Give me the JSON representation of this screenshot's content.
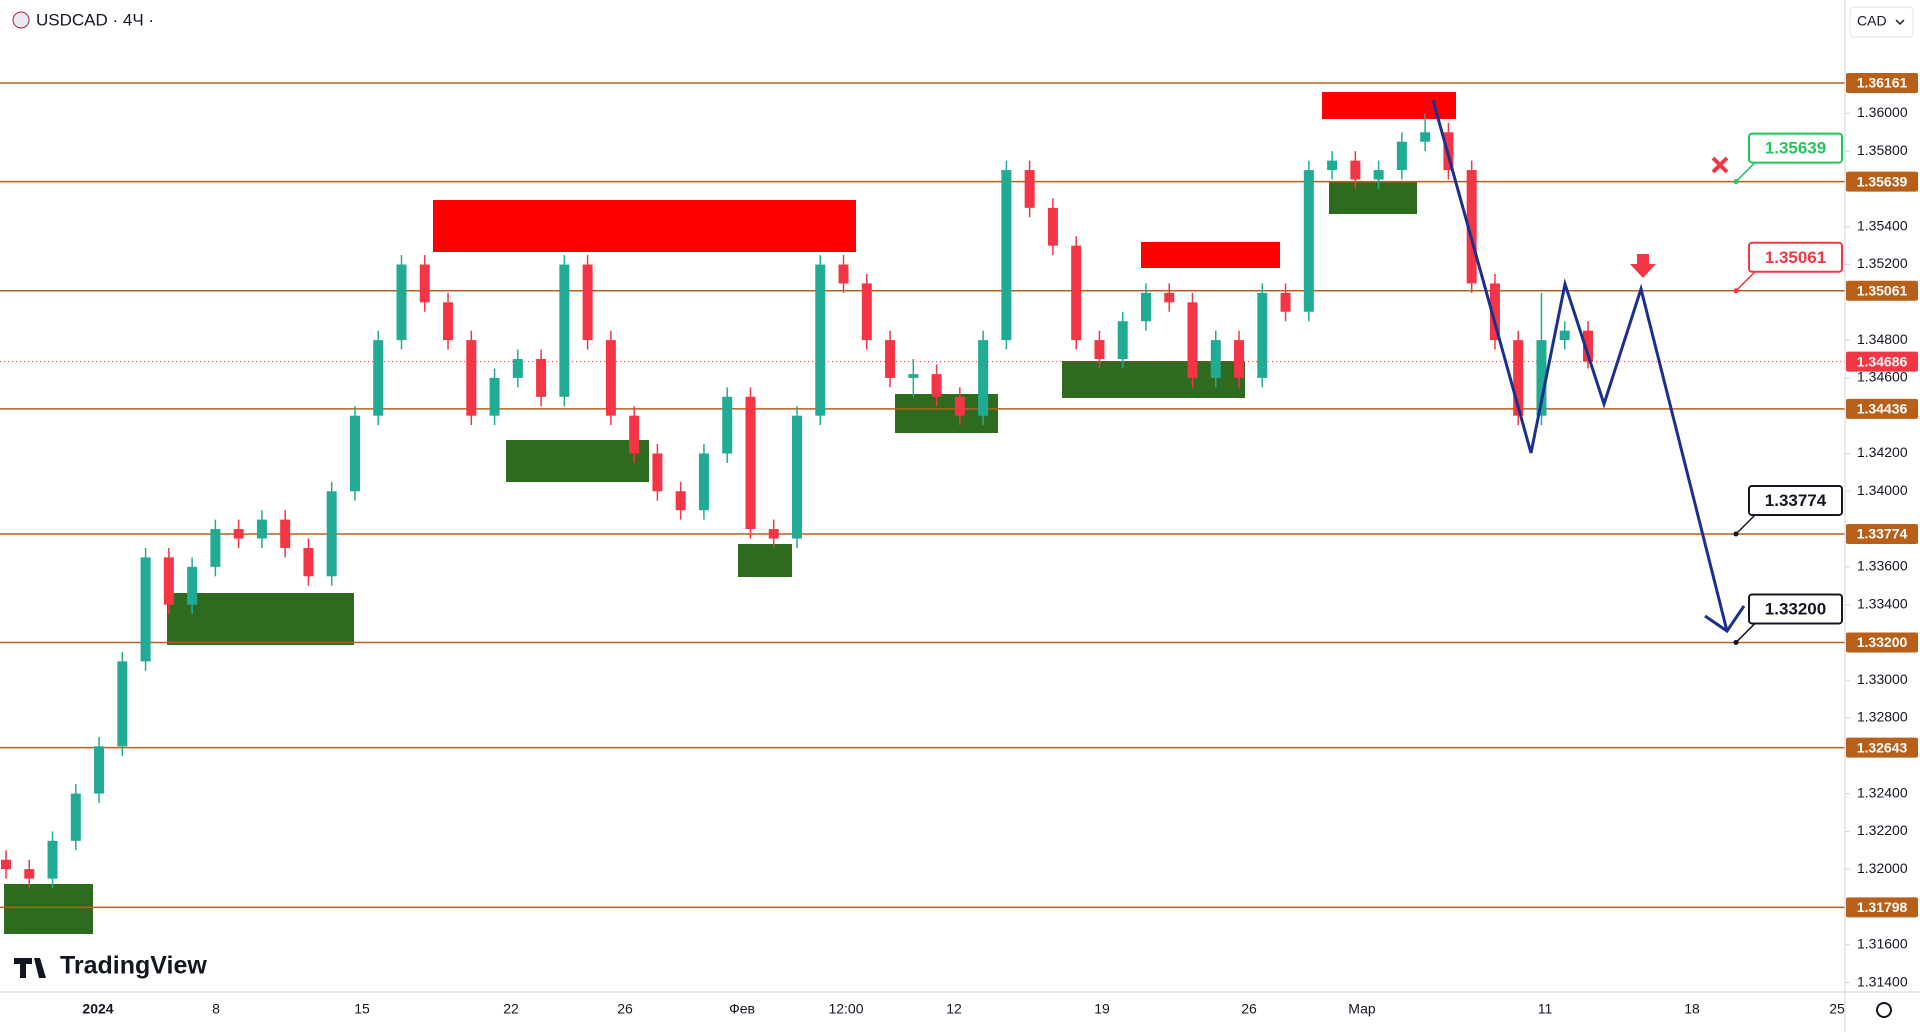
{
  "header": {
    "title": "USDCAD · 4Ч ·",
    "currency": "CAD",
    "logo": "TradingView"
  },
  "chart_data": {
    "type": "candlestick",
    "up_color": "#22ab94",
    "down_color": "#f23645",
    "level_color": "#b8601a",
    "ylim": [
      1.3135,
      1.366
    ],
    "yticks": [
      {
        "value": 1.36,
        "label": "1.36000"
      },
      {
        "value": 1.358,
        "label": "1.35800"
      },
      {
        "value": 1.354,
        "label": "1.35400"
      },
      {
        "value": 1.352,
        "label": "1.35200"
      },
      {
        "value": 1.348,
        "label": "1.34800"
      },
      {
        "value": 1.346,
        "label": "1.34600"
      },
      {
        "value": 1.342,
        "label": "1.34200"
      },
      {
        "value": 1.34,
        "label": "1.34000"
      },
      {
        "value": 1.336,
        "label": "1.33600"
      },
      {
        "value": 1.334,
        "label": "1.33400"
      },
      {
        "value": 1.33,
        "label": "1.33000"
      },
      {
        "value": 1.328,
        "label": "1.32800"
      },
      {
        "value": 1.324,
        "label": "1.32400"
      },
      {
        "value": 1.322,
        "label": "1.32200"
      },
      {
        "value": 1.32,
        "label": "1.32000"
      },
      {
        "value": 1.316,
        "label": "1.31600"
      },
      {
        "value": 1.314,
        "label": "1.31400"
      }
    ],
    "x_labels": [
      "2024",
      "8",
      "15",
      "22",
      "26",
      "Фев",
      "12:00",
      "12",
      "19",
      "26",
      "Мар",
      "11",
      "18",
      "25"
    ],
    "levels": [
      {
        "value": 1.36161,
        "label": "1.36161"
      },
      {
        "value": 1.35639,
        "label": "1.35639"
      },
      {
        "value": 1.35061,
        "label": "1.35061"
      },
      {
        "value": 1.34436,
        "label": "1.34436"
      },
      {
        "value": 1.33774,
        "label": "1.33774"
      },
      {
        "value": 1.332,
        "label": "1.33200"
      },
      {
        "value": 1.32643,
        "label": "1.32643"
      },
      {
        "value": 1.31798,
        "label": "1.31798"
      }
    ],
    "last_price": {
      "value": 1.34686,
      "label": "1.34686"
    },
    "callouts": [
      {
        "value": 1.35639,
        "label": "1.35639",
        "color": "#22c55e"
      },
      {
        "value": 1.35061,
        "label": "1.35061",
        "color": "#f23645"
      },
      {
        "value": 1.33774,
        "label": "1.33774",
        "color": "#131722"
      },
      {
        "value": 1.332,
        "label": "1.33200",
        "color": "#131722"
      }
    ],
    "candles": [
      [
        1.3205,
        1.321,
        1.3195,
        1.32
      ],
      [
        1.32,
        1.3205,
        1.319,
        1.3195
      ],
      [
        1.3195,
        1.322,
        1.319,
        1.3215
      ],
      [
        1.3215,
        1.3245,
        1.321,
        1.324
      ],
      [
        1.324,
        1.327,
        1.3235,
        1.3265
      ],
      [
        1.3265,
        1.3315,
        1.326,
        1.331
      ],
      [
        1.331,
        1.337,
        1.3305,
        1.3365
      ],
      [
        1.3365,
        1.337,
        1.3335,
        1.334
      ],
      [
        1.334,
        1.3365,
        1.3335,
        1.336
      ],
      [
        1.336,
        1.3385,
        1.3355,
        1.338
      ],
      [
        1.338,
        1.3385,
        1.337,
        1.3375
      ],
      [
        1.3375,
        1.339,
        1.337,
        1.3385
      ],
      [
        1.3385,
        1.339,
        1.3365,
        1.337
      ],
      [
        1.337,
        1.3375,
        1.335,
        1.3355
      ],
      [
        1.3355,
        1.3405,
        1.335,
        1.34
      ],
      [
        1.34,
        1.3445,
        1.3395,
        1.344
      ],
      [
        1.344,
        1.3485,
        1.3435,
        1.348
      ],
      [
        1.348,
        1.3525,
        1.3475,
        1.352
      ],
      [
        1.352,
        1.3525,
        1.3495,
        1.35
      ],
      [
        1.35,
        1.3505,
        1.3475,
        1.348
      ],
      [
        1.348,
        1.3485,
        1.3435,
        1.344
      ],
      [
        1.344,
        1.3465,
        1.3435,
        1.346
      ],
      [
        1.346,
        1.3475,
        1.3455,
        1.347
      ],
      [
        1.347,
        1.3475,
        1.3445,
        1.345
      ],
      [
        1.345,
        1.3525,
        1.3445,
        1.352
      ],
      [
        1.352,
        1.3525,
        1.3475,
        1.348
      ],
      [
        1.348,
        1.3485,
        1.3435,
        1.344
      ],
      [
        1.344,
        1.3445,
        1.3415,
        1.342
      ],
      [
        1.342,
        1.3425,
        1.3395,
        1.34
      ],
      [
        1.34,
        1.3405,
        1.3385,
        1.339
      ],
      [
        1.339,
        1.3425,
        1.3385,
        1.342
      ],
      [
        1.342,
        1.3455,
        1.3415,
        1.345
      ],
      [
        1.345,
        1.3455,
        1.3375,
        1.338
      ],
      [
        1.338,
        1.3385,
        1.337,
        1.3375
      ],
      [
        1.3375,
        1.3445,
        1.337,
        1.344
      ],
      [
        1.344,
        1.3525,
        1.3435,
        1.352
      ],
      [
        1.352,
        1.3525,
        1.3505,
        1.351
      ],
      [
        1.351,
        1.3515,
        1.3475,
        1.348
      ],
      [
        1.348,
        1.3485,
        1.3455,
        1.346
      ],
      [
        1.346,
        1.347,
        1.345,
        1.3462
      ],
      [
        1.3462,
        1.3467,
        1.3445,
        1.345
      ],
      [
        1.345,
        1.3455,
        1.3435,
        1.344
      ],
      [
        1.344,
        1.3485,
        1.3435,
        1.348
      ],
      [
        1.348,
        1.3575,
        1.3475,
        1.357
      ],
      [
        1.357,
        1.3575,
        1.3545,
        1.355
      ],
      [
        1.355,
        1.3555,
        1.3525,
        1.353
      ],
      [
        1.353,
        1.3535,
        1.3475,
        1.348
      ],
      [
        1.348,
        1.3485,
        1.3465,
        1.347
      ],
      [
        1.347,
        1.3495,
        1.3465,
        1.349
      ],
      [
        1.349,
        1.351,
        1.3485,
        1.3505
      ],
      [
        1.3505,
        1.351,
        1.3495,
        1.35
      ],
      [
        1.35,
        1.3505,
        1.3455,
        1.346
      ],
      [
        1.346,
        1.3485,
        1.3455,
        1.348
      ],
      [
        1.348,
        1.3485,
        1.3455,
        1.346
      ],
      [
        1.346,
        1.351,
        1.3455,
        1.3505
      ],
      [
        1.3505,
        1.351,
        1.349,
        1.3495
      ],
      [
        1.3495,
        1.3575,
        1.349,
        1.357
      ],
      [
        1.357,
        1.358,
        1.3565,
        1.3575
      ],
      [
        1.3575,
        1.358,
        1.356,
        1.3565
      ],
      [
        1.3565,
        1.3575,
        1.356,
        1.357
      ],
      [
        1.357,
        1.359,
        1.3565,
        1.3585
      ],
      [
        1.3585,
        1.36,
        1.358,
        1.359
      ],
      [
        1.359,
        1.3595,
        1.3565,
        1.357
      ],
      [
        1.357,
        1.3575,
        1.3505,
        1.351
      ],
      [
        1.351,
        1.3515,
        1.3475,
        1.348
      ],
      [
        1.348,
        1.3485,
        1.3435,
        1.344
      ],
      [
        1.344,
        1.3505,
        1.3435,
        1.348
      ],
      [
        1.348,
        1.349,
        1.3475,
        1.3485
      ],
      [
        1.3485,
        1.349,
        1.3465,
        1.34686
      ]
    ]
  }
}
